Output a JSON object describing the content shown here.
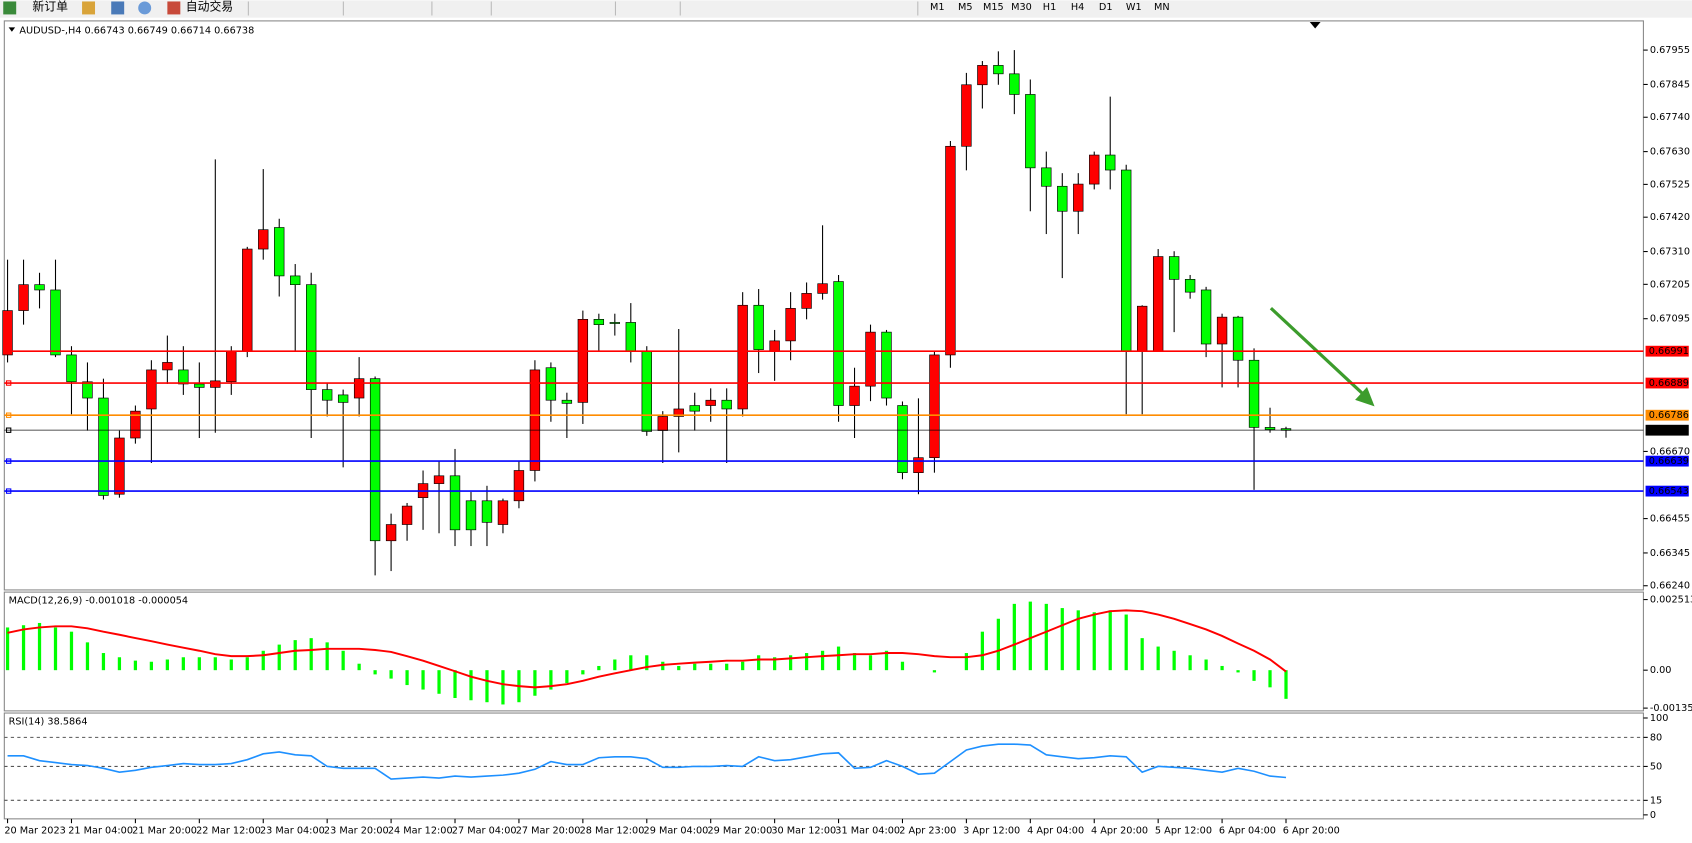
{
  "toolbar": {
    "new_order": "新订单",
    "auto_trading": "自动交易",
    "timeframes": [
      "M1",
      "M5",
      "M15",
      "M30",
      "H1",
      "H4",
      "D1",
      "W1",
      "MN"
    ]
  },
  "chart_data": [
    {
      "type": "candlestick",
      "title": "AUDUSD-,H4  0.66743 0.66749 0.66714 0.66738",
      "categories": [
        "20 Mar 2023",
        null,
        null,
        null,
        "21 Mar 04:00",
        null,
        null,
        null,
        "21 Mar 20:00",
        null,
        null,
        null,
        "22 Mar 12:00",
        null,
        null,
        null,
        "23 Mar 04:00",
        null,
        null,
        null,
        "23 Mar 20:00",
        null,
        null,
        null,
        "24 Mar 12:00",
        null,
        null,
        null,
        "27 Mar 04:00",
        null,
        null,
        null,
        "27 Mar 20:00",
        null,
        null,
        null,
        "28 Mar 12:00",
        null,
        null,
        null,
        "29 Mar 04:00",
        null,
        null,
        null,
        "29 Mar 20:00",
        null,
        null,
        null,
        "30 Mar 12:00",
        null,
        null,
        null,
        "31 Mar 04:00",
        null,
        null,
        null,
        "2 Apr 23:00",
        null,
        null,
        null,
        "3 Apr 12:00",
        null,
        null,
        null,
        "4 Apr 04:00",
        null,
        null,
        null,
        "4 Apr 20:00",
        null,
        null,
        null,
        "5 Apr 12:00",
        null,
        null,
        null,
        "6 Apr 04:00",
        null,
        null,
        null,
        "6 Apr 20:00"
      ],
      "open": [
        0.66979,
        0.67121,
        0.67204,
        0.67187,
        0.66979,
        0.66893,
        0.66841,
        0.66533,
        0.66713,
        0.66806,
        0.66931,
        0.66931,
        0.66886,
        0.66875,
        0.66893,
        0.6699,
        0.67318,
        0.67387,
        0.67232,
        0.67204,
        0.66868,
        0.66851,
        0.66841,
        0.66903,
        0.66384,
        0.66436,
        0.66522,
        0.66567,
        0.66592,
        0.66512,
        0.66512,
        0.66436,
        0.66512,
        0.66609,
        0.66938,
        0.66834,
        0.66827,
        0.67093,
        0.67083,
        0.67083,
        0.6699,
        0.66737,
        0.66782,
        0.66817,
        0.66817,
        0.66834,
        0.66806,
        0.67138,
        0.6699,
        0.67024,
        0.67128,
        0.67176,
        0.67214,
        0.66817,
        0.66879,
        0.67052,
        0.66817,
        0.66602,
        0.6665,
        0.66979,
        0.67647,
        0.67844,
        0.67906,
        0.67879,
        0.67813,
        0.67578,
        0.67519,
        0.67439,
        0.67526,
        0.67619,
        0.67571,
        0.6699,
        0.6699,
        0.67294,
        0.67221,
        0.67187,
        0.67014,
        0.671,
        0.66962,
        0.66747,
        0.66743
      ],
      "high": [
        0.67284,
        0.67284,
        0.67242,
        0.67284,
        0.67007,
        0.66955,
        0.66903,
        0.66737,
        0.66817,
        0.66962,
        0.67041,
        0.67007,
        0.66955,
        0.67605,
        0.67007,
        0.67325,
        0.67574,
        0.67415,
        0.6727,
        0.67242,
        0.66889,
        0.66868,
        0.66972,
        0.6691,
        0.66471,
        0.66505,
        0.66609,
        0.6664,
        0.66678,
        0.6654,
        0.6656,
        0.66519,
        0.6664,
        0.66962,
        0.66955,
        0.66858,
        0.67121,
        0.67111,
        0.67111,
        0.67145,
        0.67007,
        0.66799,
        0.67062,
        0.66858,
        0.66872,
        0.66872,
        0.6718,
        0.6719,
        0.67059,
        0.6718,
        0.67211,
        0.67394,
        0.67235,
        0.66938,
        0.67076,
        0.67059,
        0.6683,
        0.6684,
        0.6699,
        0.67664,
        0.67882,
        0.6792,
        0.67951,
        0.67955,
        0.67861,
        0.6763,
        0.67561,
        0.67561,
        0.6763,
        0.67806,
        0.67588,
        0.67138,
        0.67318,
        0.67311,
        0.67235,
        0.67197,
        0.67111,
        0.67104,
        0.67,
        0.6681,
        0.66749
      ],
      "low": [
        0.66955,
        0.67076,
        0.67128,
        0.66972,
        0.66789,
        0.66737,
        0.66516,
        0.66522,
        0.66695,
        0.66633,
        0.66886,
        0.66851,
        0.66713,
        0.6673,
        0.66851,
        0.66972,
        0.67284,
        0.67166,
        0.6699,
        0.66713,
        0.66782,
        0.66619,
        0.66782,
        0.66273,
        0.66287,
        0.66384,
        0.66419,
        0.66408,
        0.66367,
        0.66367,
        0.66367,
        0.66408,
        0.66488,
        0.66574,
        0.66765,
        0.66713,
        0.66758,
        0.6699,
        0.67041,
        0.66955,
        0.6672,
        0.66633,
        0.66667,
        0.66737,
        0.66765,
        0.66633,
        0.66782,
        0.66921,
        0.66896,
        0.66962,
        0.67093,
        0.67156,
        0.66765,
        0.66713,
        0.66831,
        0.66817,
        0.66581,
        0.66533,
        0.66602,
        0.66938,
        0.6757,
        0.67768,
        0.67844,
        0.6775,
        0.67439,
        0.67366,
        0.67225,
        0.67366,
        0.67509,
        0.67509,
        0.66789,
        0.66789,
        0.6699,
        0.67052,
        0.67159,
        0.66972,
        0.66875,
        0.66875,
        0.66547,
        0.6673,
        0.66714
      ],
      "close": [
        0.67121,
        0.67204,
        0.67187,
        0.66979,
        0.66893,
        0.66841,
        0.66529,
        0.66713,
        0.66799,
        0.66931,
        0.66955,
        0.66886,
        0.66875,
        0.66896,
        0.6699,
        0.67318,
        0.6738,
        0.67232,
        0.67204,
        0.66868,
        0.66834,
        0.66827,
        0.66903,
        0.66384,
        0.66436,
        0.66495,
        0.66567,
        0.66592,
        0.66419,
        0.66419,
        0.66443,
        0.66512,
        0.66609,
        0.66931,
        0.66834,
        0.66824,
        0.67093,
        0.67076,
        0.6708,
        0.6699,
        0.66734,
        0.66782,
        0.66806,
        0.66799,
        0.66834,
        0.66806,
        0.67138,
        0.66996,
        0.67024,
        0.67128,
        0.67176,
        0.67207,
        0.66817,
        0.66879,
        0.67052,
        0.66841,
        0.66602,
        0.6665,
        0.66979,
        0.67647,
        0.67844,
        0.67906,
        0.67879,
        0.67813,
        0.67578,
        0.67519,
        0.67439,
        0.67526,
        0.67619,
        0.67571,
        0.6699,
        0.67135,
        0.67294,
        0.67221,
        0.6718,
        0.67014,
        0.671,
        0.66962,
        0.66747,
        0.6674,
        0.66738
      ],
      "up_color": "#ff0000",
      "down_color": "#00ff00",
      "ylim": [
        0.6623,
        0.68045
      ],
      "yticks": [
        0.67955,
        0.67845,
        {
          "value": 0.6774,
          "label": "0.67740"
        },
        {
          "value": 0.6763,
          "label": "0.67630"
        },
        0.67525,
        {
          "value": 0.6742,
          "label": "0.67420"
        },
        {
          "value": 0.6731,
          "label": "0.67310"
        },
        0.67205,
        0.67095,
        {
          "value": 0.6667,
          "label": "0.66670"
        },
        0.66455,
        0.66345,
        {
          "value": 0.6624,
          "label": "0.66240"
        }
      ],
      "levels": [
        {
          "value": 0.66991,
          "color": "#ff0000"
        },
        {
          "value": 0.66889,
          "color": "#ff0000"
        },
        {
          "value": 0.66786,
          "color": "#ff8c00"
        },
        {
          "value": 0.66738,
          "color": "#000000"
        },
        {
          "value": 0.66639,
          "color": "#0000ff"
        },
        {
          "value": 0.66543,
          "color": "#0000ff"
        }
      ]
    },
    {
      "type": "macd",
      "title": "MACD(12,26,9) -0.001018 -0.000054",
      "series": [
        {
          "type": "bar",
          "color": "#00ff00",
          "values": [
            0.00152,
            0.0016,
            0.00168,
            0.00152,
            0.00137,
            0.00099,
            0.00061,
            0.00046,
            0.00034,
            0.0003,
            0.00038,
            0.00046,
            0.00046,
            0.00046,
            0.00038,
            0.00046,
            0.00069,
            0.00091,
            0.00107,
            0.00114,
            0.00099,
            0.00069,
            0.00023,
            -0.00015,
            -0.0003,
            -0.00053,
            -0.00069,
            -0.00084,
            -0.00099,
            -0.00107,
            -0.00114,
            -0.00122,
            -0.00114,
            -0.00091,
            -0.00069,
            -0.00046,
            -0.00015,
            0.00015,
            0.00038,
            0.00053,
            0.00053,
            0.0003,
            0.00015,
            0.00023,
            0.00023,
            0.00023,
            0.0003,
            0.00053,
            0.00046,
            0.00053,
            0.00061,
            0.00069,
            0.00084,
            0.00061,
            0.00053,
            0.00069,
            0.0003,
            0,
            -8e-05,
            0,
            0.00061,
            0.00137,
            0.00183,
            0.00236,
            0.00244,
            0.00236,
            0.00221,
            0.00213,
            0.00206,
            0.00213,
            0.00198,
            0.00114,
            0.00084,
            0.00069,
            0.00053,
            0.00038,
            0.00015,
            -8e-05,
            -0.00038,
            -0.00061,
            -0.00102
          ]
        },
        {
          "type": "line",
          "color": "#ff0000",
          "values": [
            0.00133,
            0.00145,
            0.00152,
            0.00156,
            0.00156,
            0.00149,
            0.00137,
            0.00126,
            0.00114,
            0.00103,
            0.00091,
            0.0008,
            0.00069,
            0.00057,
            0.0005,
            0.0005,
            0.00053,
            0.00061,
            0.00069,
            0.00072,
            0.00076,
            0.00076,
            0.00076,
            0.00072,
            0.00065,
            0.0005,
            0.00034,
            0.00015,
            -4e-05,
            -0.00023,
            -0.00038,
            -0.0005,
            -0.00057,
            -0.00061,
            -0.00057,
            -0.0005,
            -0.00038,
            -0.00023,
            -0.00011,
            0,
            0.00011,
            0.00019,
            0.00023,
            0.00027,
            0.0003,
            0.00034,
            0.00034,
            0.00038,
            0.00038,
            0.00042,
            0.00046,
            0.0005,
            0.00053,
            0.00057,
            0.00057,
            0.00061,
            0.00061,
            0.00057,
            0.0005,
            0.00046,
            0.00046,
            0.00053,
            0.00069,
            0.00091,
            0.00114,
            0.00137,
            0.0016,
            0.00183,
            0.00198,
            0.0021,
            0.00213,
            0.0021,
            0.00198,
            0.00183,
            0.00164,
            0.00145,
            0.00122,
            0.00095,
            0.00069,
            0.00038,
            -5e-05
          ]
        }
      ],
      "ylim": [
        -0.00141,
        0.00274
      ],
      "yticks": [
        0.002513,
        {
          "value": 0,
          "label": "0.00"
        },
        -0.00135
      ]
    },
    {
      "type": "line",
      "title": "RSI(14) 38.5864",
      "series": [
        {
          "color": "#1e90ff",
          "values": [
            61,
            61,
            56,
            54,
            52,
            51,
            48,
            44,
            46,
            49,
            51,
            53,
            52,
            52,
            53,
            57,
            63,
            65,
            62,
            61,
            50,
            48,
            48,
            48,
            37,
            38,
            39,
            38,
            40,
            39,
            40,
            41,
            43,
            47,
            55,
            52,
            52,
            59,
            60,
            60,
            58,
            49,
            49,
            50,
            50,
            51,
            50,
            60,
            56,
            57,
            60,
            63,
            64,
            48,
            49,
            56,
            50,
            42,
            43,
            55,
            67,
            71,
            73,
            73,
            72,
            62,
            60,
            58,
            59,
            61,
            60,
            44,
            50,
            49,
            48,
            46,
            44,
            48,
            45,
            40,
            38.59
          ]
        }
      ],
      "ylim": [
        -3,
        104
      ],
      "yticks": [
        100,
        80,
        50,
        15,
        0
      ],
      "levels": [
        80,
        50,
        15
      ]
    }
  ]
}
